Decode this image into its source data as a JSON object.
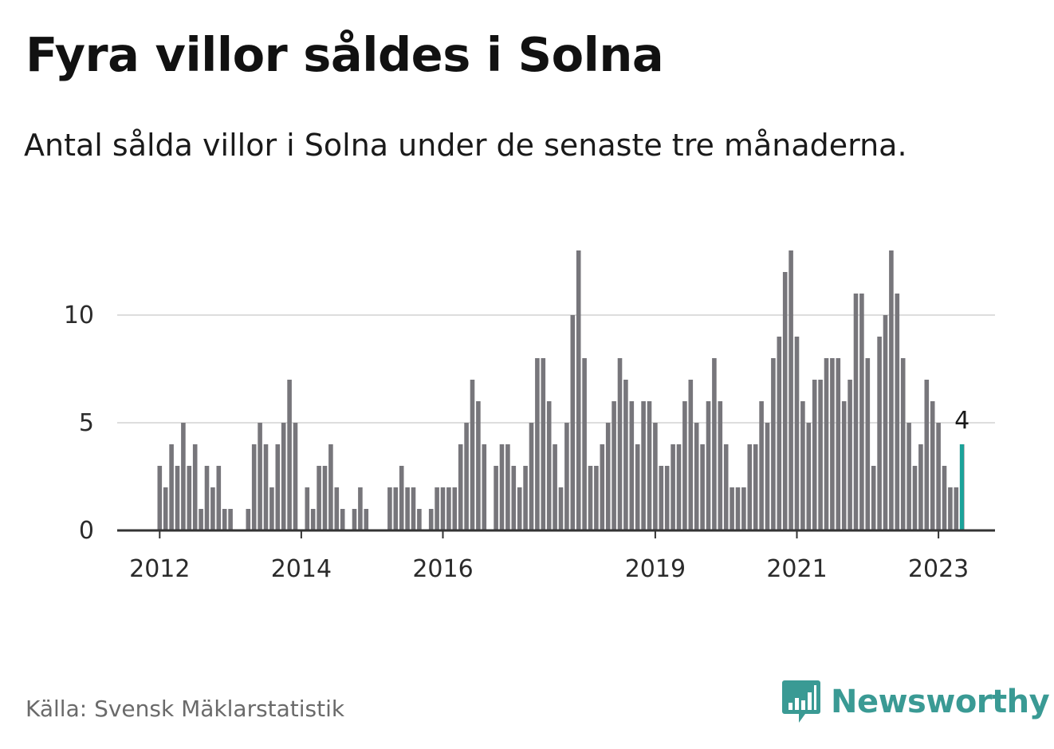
{
  "title": "Fyra villor såldes i Solna",
  "subtitle": "Antal sålda villor i Solna under de senaste tre månaderna.",
  "source": "Källa: Svensk Mäklarstatistik",
  "brand": {
    "name": "Newsworthy",
    "icon": "newsworthy-logo-icon",
    "color": "#3a9a94"
  },
  "colors": {
    "bar": "#77767b",
    "highlight": "#1aa39a",
    "grid": "#dddddd",
    "axis": "#333333"
  },
  "chart_data": {
    "type": "bar",
    "title": "Fyra villor såldes i Solna",
    "xlabel": "",
    "ylabel": "",
    "ylim": [
      0,
      13
    ],
    "yticks": [
      0,
      5,
      10
    ],
    "grid": true,
    "x_tick_labels": [
      {
        "label": "2012",
        "index": 0
      },
      {
        "label": "2014",
        "index": 24
      },
      {
        "label": "2016",
        "index": 48
      },
      {
        "label": "2019",
        "index": 84
      },
      {
        "label": "2021",
        "index": 108
      },
      {
        "label": "2023",
        "index": 132
      }
    ],
    "start": "2012-01",
    "frequency": "monthly",
    "values": [
      3,
      2,
      4,
      3,
      5,
      3,
      4,
      1,
      3,
      2,
      3,
      1,
      1,
      0,
      0,
      1,
      4,
      5,
      4,
      2,
      4,
      5,
      7,
      5,
      0,
      2,
      1,
      3,
      3,
      4,
      2,
      1,
      0,
      1,
      2,
      1,
      0,
      0,
      0,
      2,
      2,
      3,
      2,
      2,
      1,
      0,
      1,
      2,
      2,
      2,
      2,
      4,
      5,
      7,
      6,
      4,
      0,
      3,
      4,
      4,
      3,
      2,
      3,
      5,
      8,
      8,
      6,
      4,
      2,
      5,
      10,
      13,
      8,
      3,
      3,
      4,
      5,
      6,
      8,
      7,
      6,
      4,
      6,
      6,
      5,
      3,
      3,
      4,
      4,
      6,
      7,
      5,
      4,
      6,
      8,
      6,
      4,
      2,
      2,
      2,
      4,
      4,
      6,
      5,
      8,
      9,
      12,
      13,
      9,
      6,
      5,
      7,
      7,
      8,
      8,
      8,
      6,
      7,
      11,
      11,
      8,
      3,
      9,
      10,
      13,
      11,
      8,
      5,
      3,
      4,
      7,
      6,
      5,
      3,
      2,
      2,
      4
    ],
    "highlight_index": 136,
    "highlight_label": "4"
  }
}
